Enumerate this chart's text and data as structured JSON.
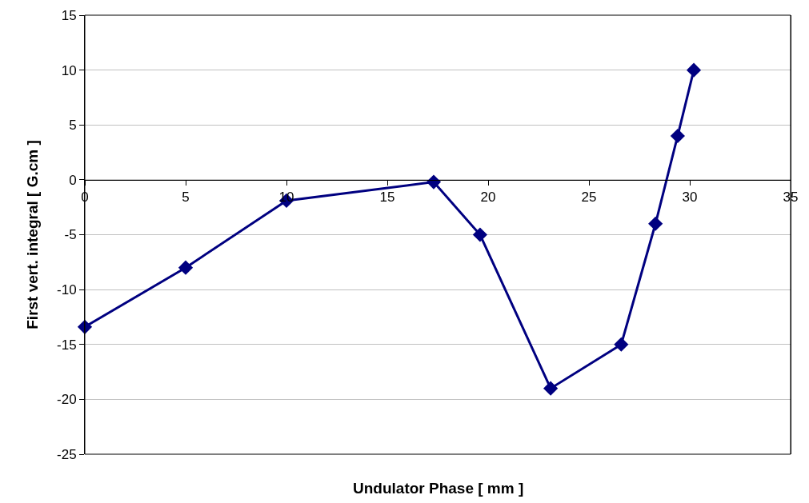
{
  "chart_data": {
    "type": "line",
    "xlabel": "Undulator Phase [ mm ]",
    "ylabel": "First vert. integral [ G.cm ]",
    "x": [
      0,
      5,
      10,
      17.3,
      19.6,
      23.1,
      26.6,
      28.3,
      29.4,
      30.2
    ],
    "series": [
      {
        "color": "#000080",
        "values": [
          -13.4,
          -8,
          -1.9,
          -0.2,
          -5,
          -19,
          -15,
          -4,
          4,
          10
        ]
      }
    ],
    "xlim": [
      0,
      35
    ],
    "xticks": [
      0,
      5,
      10,
      15,
      20,
      25,
      30,
      35
    ],
    "ylim": [
      -25,
      15
    ],
    "yticks": [
      -25,
      -20,
      -15,
      -10,
      -5,
      0,
      5,
      10,
      15
    ],
    "grid": "y",
    "marker": "diamond",
    "line_style": "solid"
  }
}
